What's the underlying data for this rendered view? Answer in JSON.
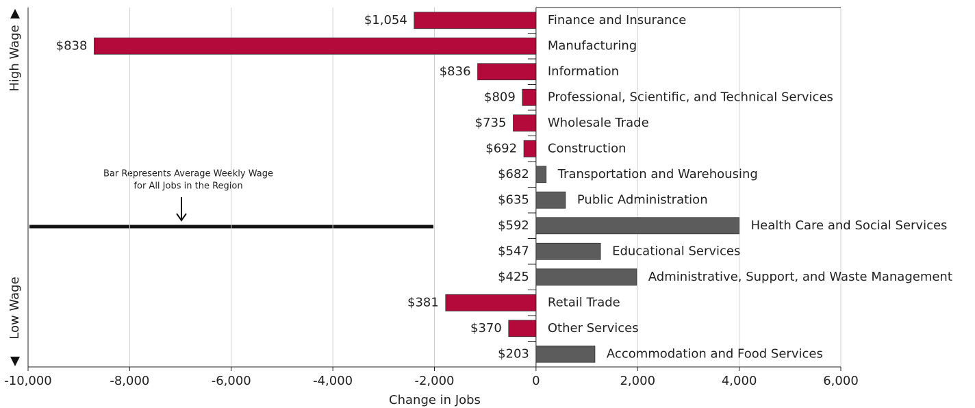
{
  "chart_data": {
    "type": "bar",
    "orientation": "horizontal",
    "x_label": "Change in Jobs",
    "categories": [
      "Finance and Insurance",
      "Manufacturing",
      "Information",
      "Professional, Scientific, and Technical Services",
      "Wholesale Trade",
      "Construction",
      "Transportation and Warehousing",
      "Public Administration",
      "Health Care and Social Services",
      "Educational Services",
      "Administrative, Support, and Waste Management",
      "Retail Trade",
      "Other Services",
      "Accommodation and Food Services"
    ],
    "values": [
      -2400,
      -8700,
      -1150,
      -270,
      -450,
      -240,
      200,
      580,
      4000,
      1270,
      1980,
      -1780,
      -540,
      1160
    ],
    "wages": [
      "$1,054",
      "$838",
      "$836",
      "$809",
      "$735",
      "$692",
      "$682",
      "$635",
      "$592",
      "$547",
      "$425",
      "$381",
      "$370",
      "$203"
    ],
    "colors": [
      "#b3093b",
      "#b3093b",
      "#b3093b",
      "#b3093b",
      "#b3093b",
      "#b3093b",
      "#5c5c5c",
      "#5c5c5c",
      "#5c5c5c",
      "#5c5c5c",
      "#5c5c5c",
      "#b3093b",
      "#b3093b",
      "#5c5c5c"
    ],
    "xlim": [
      -10000,
      6000
    ],
    "xticks": [
      {
        "value": -10000,
        "label": "-10,000"
      },
      {
        "value": -8000,
        "label": "-8,000"
      },
      {
        "value": -6000,
        "label": "-6,000"
      },
      {
        "value": -4000,
        "label": "-4,000"
      },
      {
        "value": -2000,
        "label": "-2,000"
      },
      0,
      {
        "value": 2000,
        "label": "2,000"
      },
      {
        "value": 4000,
        "label": "4,000"
      },
      {
        "value": 6000,
        "label": "6,000"
      }
    ],
    "grid": true,
    "y_labels": {
      "top": "High Wage",
      "bottom": "Low Wage"
    },
    "annotation": [
      "Bar Represents Average Weekly Wage",
      "for All Jobs in the Region"
    ]
  }
}
